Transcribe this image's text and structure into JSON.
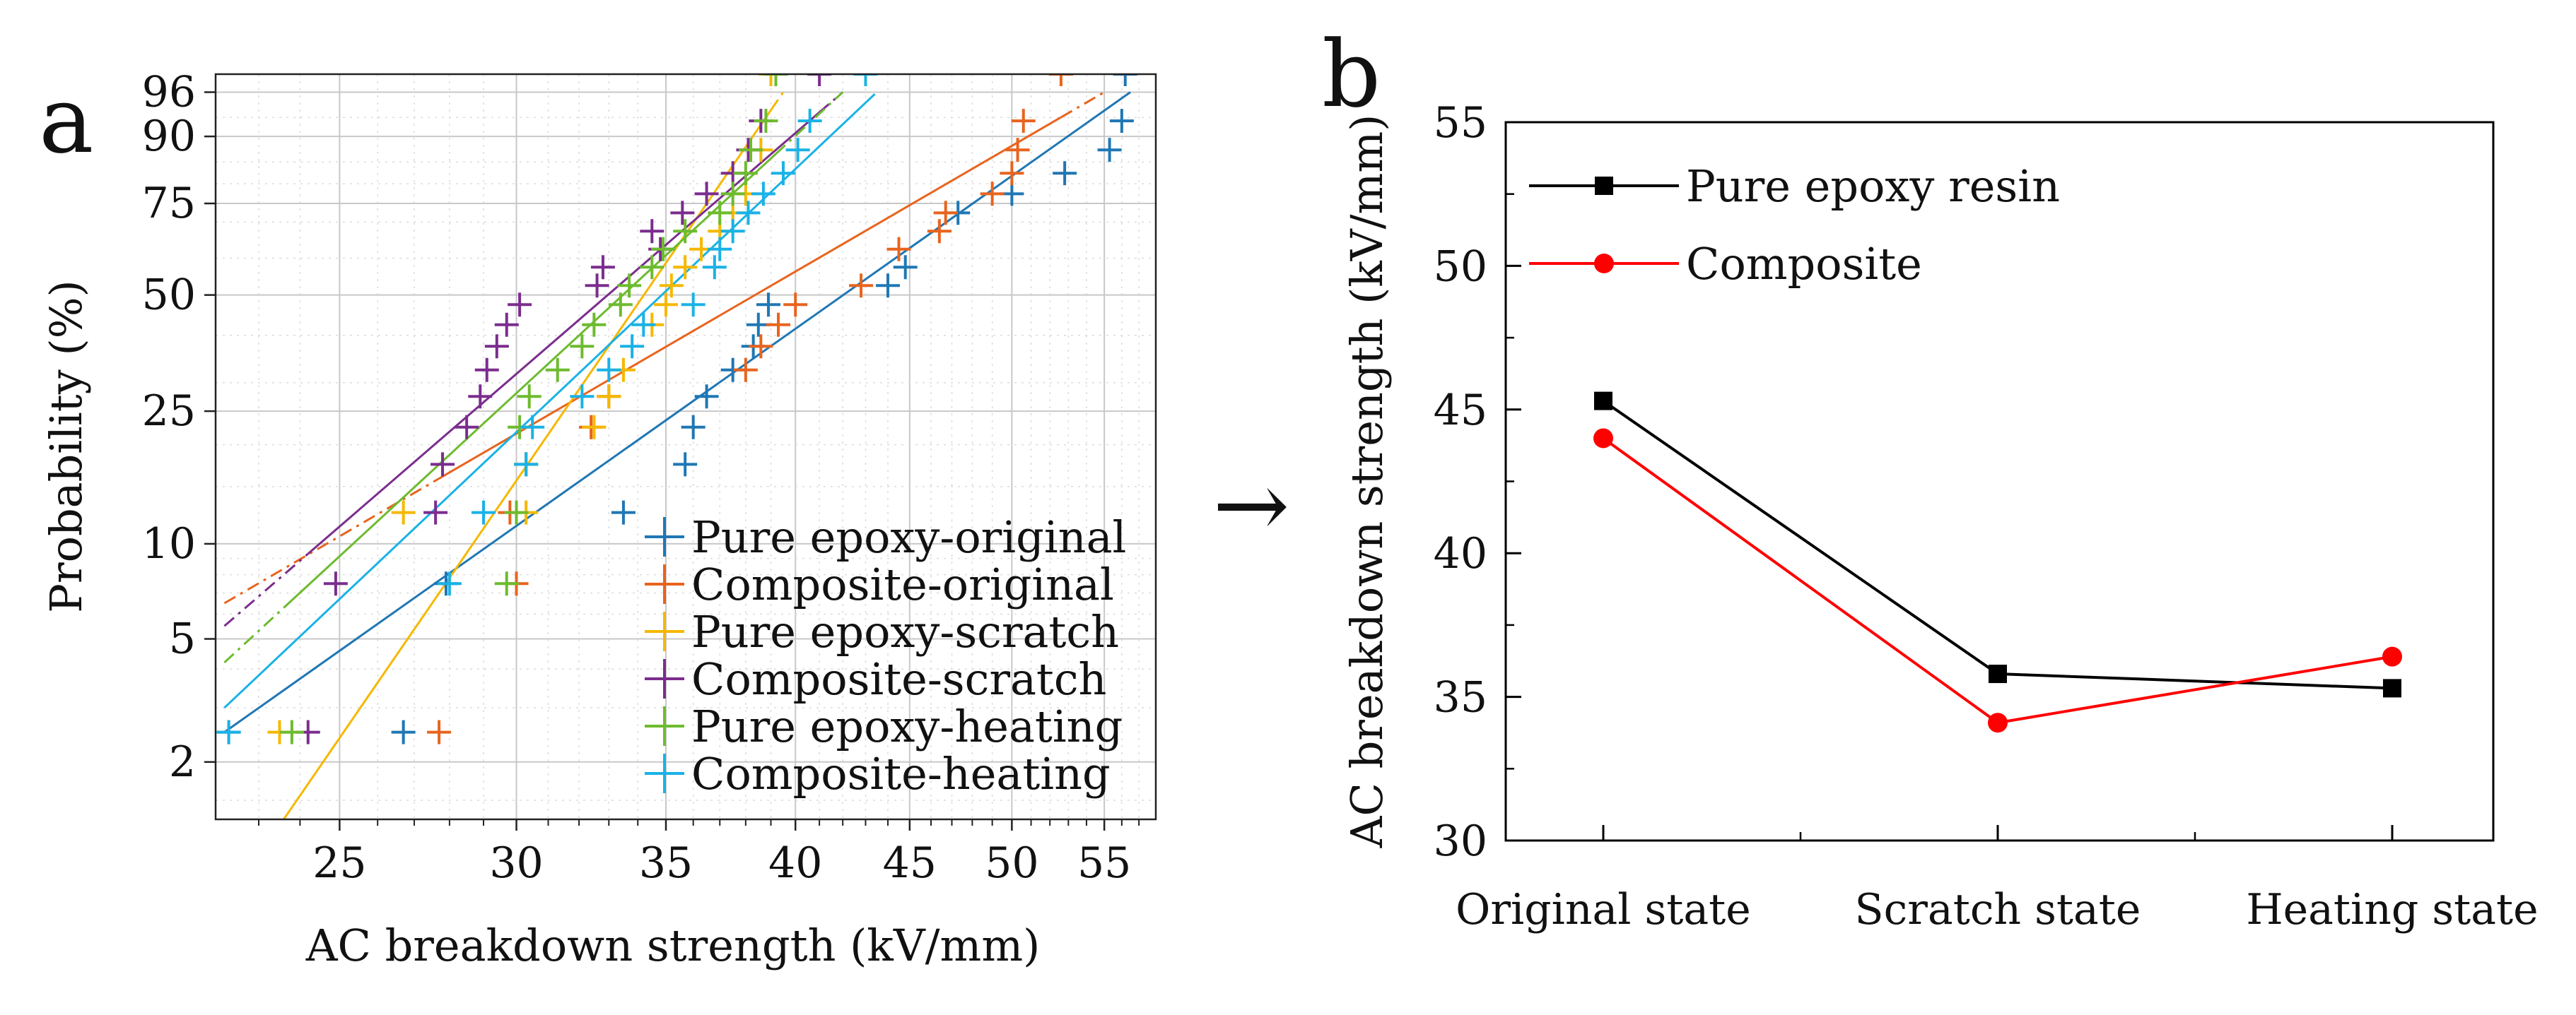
{
  "figure": {
    "arrow": "→",
    "colors": {
      "blue": "#1f77b4",
      "orange": "#e8641e",
      "yellow": "#f5b800",
      "purple": "#7b2d8e",
      "green": "#6dbb2e",
      "cyan": "#1ab2e6",
      "black": "#000000",
      "red": "#ff0000"
    }
  },
  "chart_data": [
    {
      "panel_label": "a",
      "type": "scatter",
      "subtype": "weibull-probability-plot",
      "xlabel": "AC breakdown strength (kV/mm)",
      "ylabel": "Probability (%)",
      "x_scale": "log",
      "y_scale": "weibull",
      "xlim": [
        22,
        58
      ],
      "ylim": [
        1.3,
        97.5
      ],
      "xticks": [
        25,
        30,
        35,
        40,
        45,
        50,
        55
      ],
      "yticks": [
        2,
        5,
        10,
        25,
        50,
        75,
        90,
        96
      ],
      "grid": true,
      "legend_position": "lower-right",
      "series": [
        {
          "name": "Pure epoxy-original",
          "color": "blue",
          "fit_style": "solid+dashdot",
          "values": [
            [
              22.3,
              2.5
            ],
            [
              26.7,
              2.5
            ],
            [
              27.9,
              7.5
            ],
            [
              33.5,
              12.5
            ],
            [
              35.7,
              17.5
            ],
            [
              36.0,
              22.5
            ],
            [
              36.5,
              27.5
            ],
            [
              37.5,
              32.5
            ],
            [
              38.3,
              37.5
            ],
            [
              38.5,
              42.5
            ],
            [
              38.9,
              47.5
            ],
            [
              44.0,
              52.5
            ],
            [
              44.8,
              57.5
            ],
            [
              47.3,
              72.5
            ],
            [
              50.0,
              77.5
            ],
            [
              52.8,
              82.5
            ],
            [
              55.3,
              87.5
            ],
            [
              56.0,
              92.5
            ],
            [
              56.2,
              97.5
            ]
          ],
          "fit": [
            [
              22.2,
              2.5
            ],
            [
              56.5,
              96
            ]
          ]
        },
        {
          "name": "Composite-original",
          "color": "orange",
          "fit_style": "solid+dashdot",
          "values": [
            [
              27.7,
              2.5
            ],
            [
              30.0,
              7.5
            ],
            [
              29.8,
              12.5
            ],
            [
              30.3,
              17.5
            ],
            [
              32.4,
              22.5
            ],
            [
              33.0,
              27.5
            ],
            [
              38.0,
              32.5
            ],
            [
              38.6,
              37.5
            ],
            [
              39.3,
              42.5
            ],
            [
              40.0,
              47.5
            ],
            [
              42.8,
              52.5
            ],
            [
              44.5,
              62.5
            ],
            [
              46.4,
              67.5
            ],
            [
              46.7,
              72.5
            ],
            [
              49.0,
              77.5
            ],
            [
              50.0,
              82.5
            ],
            [
              50.3,
              87.5
            ],
            [
              50.6,
              92.5
            ],
            [
              52.6,
              97.5
            ]
          ],
          "fit": [
            [
              22.2,
              6.5
            ],
            [
              55.0,
              96
            ]
          ]
        },
        {
          "name": "Pure epoxy-scratch",
          "color": "yellow",
          "fit_style": "solid+dashdot",
          "values": [
            [
              23.5,
              2.5
            ],
            [
              26.7,
              12.5
            ],
            [
              30.3,
              12.5
            ],
            [
              32.5,
              22.5
            ],
            [
              33.0,
              27.5
            ],
            [
              33.5,
              32.5
            ],
            [
              34.5,
              42.5
            ],
            [
              35.0,
              47.5
            ],
            [
              35.2,
              52.5
            ],
            [
              35.7,
              57.5
            ],
            [
              36.3,
              62.5
            ],
            [
              37.0,
              67.5
            ],
            [
              37.5,
              72.5
            ],
            [
              38.0,
              77.5
            ],
            [
              38.6,
              87.5
            ],
            [
              39.0,
              97.5
            ]
          ],
          "fit": [
            [
              23.6,
              1.3
            ],
            [
              39.5,
              96
            ]
          ]
        },
        {
          "name": "Composite-scratch",
          "color": "purple",
          "fit_style": "solid+dashdot",
          "values": [
            [
              24.2,
              2.5
            ],
            [
              24.9,
              7.5
            ],
            [
              27.6,
              12.5
            ],
            [
              27.8,
              17.5
            ],
            [
              28.5,
              22.5
            ],
            [
              28.9,
              27.5
            ],
            [
              29.1,
              32.5
            ],
            [
              29.4,
              37.5
            ],
            [
              29.7,
              42.5
            ],
            [
              30.1,
              47.5
            ],
            [
              32.6,
              52.5
            ],
            [
              32.8,
              57.5
            ],
            [
              34.5,
              67.5
            ],
            [
              34.8,
              62.5
            ],
            [
              35.6,
              72.5
            ],
            [
              36.5,
              77.5
            ],
            [
              37.5,
              82.5
            ],
            [
              38.1,
              87.5
            ],
            [
              38.6,
              92.5
            ],
            [
              41.0,
              97.5
            ]
          ],
          "fit": [
            [
              22.2,
              5.5
            ],
            [
              42.0,
              96
            ]
          ]
        },
        {
          "name": "Pure epoxy-heating",
          "color": "green",
          "fit_style": "solid+dashdot",
          "values": [
            [
              23.8,
              2.5
            ],
            [
              29.7,
              7.5
            ],
            [
              30.0,
              12.5
            ],
            [
              30.3,
              17.5
            ],
            [
              30.1,
              22.5
            ],
            [
              30.4,
              27.5
            ],
            [
              31.3,
              32.5
            ],
            [
              32.1,
              37.5
            ],
            [
              32.5,
              42.5
            ],
            [
              33.4,
              47.5
            ],
            [
              33.7,
              52.5
            ],
            [
              34.5,
              57.5
            ],
            [
              34.9,
              62.5
            ],
            [
              35.7,
              67.5
            ],
            [
              37.0,
              72.5
            ],
            [
              37.5,
              77.5
            ],
            [
              38.0,
              82.5
            ],
            [
              38.2,
              87.5
            ],
            [
              38.8,
              92.5
            ],
            [
              39.2,
              97.5
            ]
          ],
          "fit": [
            [
              22.2,
              4.2
            ],
            [
              42.0,
              96
            ]
          ]
        },
        {
          "name": "Composite-heating",
          "color": "cyan",
          "fit_style": "solid+dashdot",
          "values": [
            [
              22.3,
              2.5
            ],
            [
              28.0,
              7.5
            ],
            [
              29.0,
              12.5
            ],
            [
              30.3,
              17.5
            ],
            [
              30.5,
              22.5
            ],
            [
              32.1,
              27.5
            ],
            [
              33.0,
              32.5
            ],
            [
              33.8,
              37.5
            ],
            [
              34.2,
              42.5
            ],
            [
              36.0,
              47.5
            ],
            [
              36.8,
              57.5
            ],
            [
              37.0,
              62.5
            ],
            [
              37.5,
              67.5
            ],
            [
              38.1,
              72.5
            ],
            [
              38.7,
              77.5
            ],
            [
              39.5,
              82.5
            ],
            [
              40.1,
              87.5
            ],
            [
              40.6,
              92.5
            ],
            [
              43.0,
              97.5
            ]
          ],
          "fit": [
            [
              22.2,
              3.0
            ],
            [
              43.5,
              96
            ]
          ]
        }
      ]
    },
    {
      "panel_label": "b",
      "type": "line",
      "xlabel": "",
      "ylabel": "AC breakdown strength (kV/mm)",
      "categories": [
        "Original state",
        "Scratch state",
        "Heating state"
      ],
      "ylim": [
        30,
        55
      ],
      "yticks": [
        30,
        35,
        40,
        45,
        50,
        55
      ],
      "grid": false,
      "legend_position": "top-left",
      "series": [
        {
          "name": "Pure epoxy resin",
          "color": "black",
          "marker": "square",
          "values": [
            45.3,
            35.8,
            35.3
          ]
        },
        {
          "name": "Composite",
          "color": "red",
          "marker": "circle",
          "values": [
            44.0,
            34.1,
            36.4
          ]
        }
      ]
    }
  ]
}
